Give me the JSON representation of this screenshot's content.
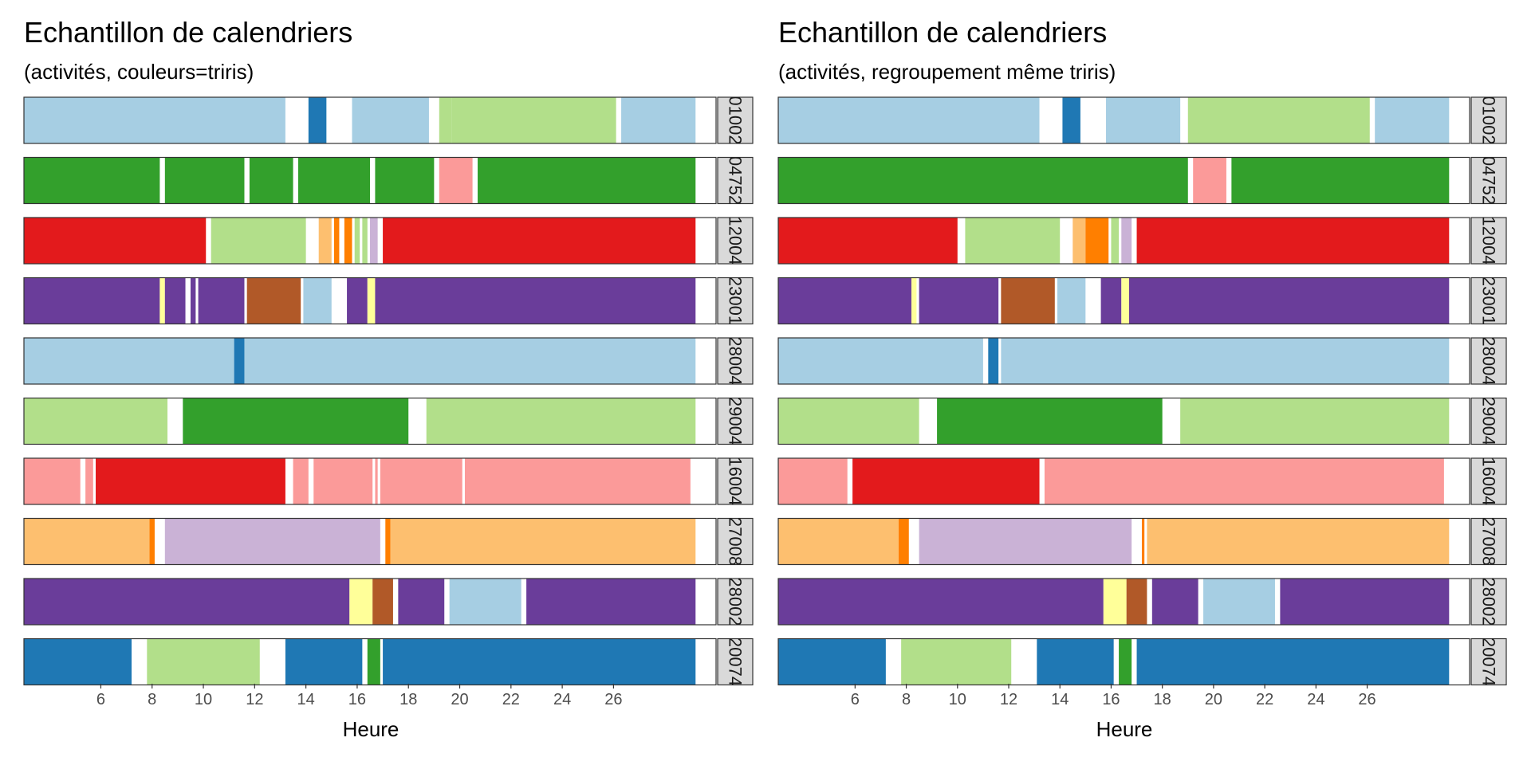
{
  "colors": {
    "a": "#A6CEE3",
    "b": "#1F78B4",
    "c": "#B2DF8A",
    "d": "#33A02C",
    "e": "#FB9A99",
    "f": "#E31A1C",
    "g": "#FDBF6F",
    "h": "#FF7F00",
    "i": "#CAB2D6",
    "j": "#6A3D9A",
    "k": "#FFFF99",
    "l": "#B15928"
  },
  "chart_data": [
    {
      "type": "bar",
      "title": "Echantillon de calendriers",
      "subtitle": "(activités, couleurs=triris)",
      "xlabel": "Heure",
      "xlim": [
        3,
        30
      ],
      "x_ticks": [
        6,
        8,
        10,
        12,
        14,
        16,
        18,
        20,
        22,
        24,
        26
      ],
      "rows": [
        {
          "label": "01002",
          "segments": [
            {
              "start": 3.0,
              "end": 13.2,
              "color": "a"
            },
            {
              "start": 14.1,
              "end": 14.8,
              "color": "b"
            },
            {
              "start": 15.8,
              "end": 18.8,
              "color": "a"
            },
            {
              "start": 19.2,
              "end": 19.7,
              "color": "c"
            },
            {
              "start": 19.7,
              "end": 26.1,
              "color": "c"
            },
            {
              "start": 26.3,
              "end": 29.2,
              "color": "a"
            }
          ]
        },
        {
          "label": "04752",
          "segments": [
            {
              "start": 3.0,
              "end": 8.3,
              "color": "d"
            },
            {
              "start": 8.5,
              "end": 11.6,
              "color": "d"
            },
            {
              "start": 11.8,
              "end": 13.5,
              "color": "d"
            },
            {
              "start": 13.7,
              "end": 16.5,
              "color": "d"
            },
            {
              "start": 16.7,
              "end": 19.0,
              "color": "d"
            },
            {
              "start": 19.2,
              "end": 20.5,
              "color": "e"
            },
            {
              "start": 20.7,
              "end": 29.2,
              "color": "d"
            }
          ]
        },
        {
          "label": "12004",
          "segments": [
            {
              "start": 3.0,
              "end": 10.1,
              "color": "f"
            },
            {
              "start": 10.3,
              "end": 14.0,
              "color": "c"
            },
            {
              "start": 14.5,
              "end": 15.0,
              "color": "g"
            },
            {
              "start": 15.1,
              "end": 15.3,
              "color": "h"
            },
            {
              "start": 15.5,
              "end": 15.8,
              "color": "h"
            },
            {
              "start": 15.9,
              "end": 16.1,
              "color": "c"
            },
            {
              "start": 16.2,
              "end": 16.4,
              "color": "c"
            },
            {
              "start": 16.5,
              "end": 16.8,
              "color": "i"
            },
            {
              "start": 17.0,
              "end": 29.2,
              "color": "f"
            }
          ]
        },
        {
          "label": "23001",
          "segments": [
            {
              "start": 3.0,
              "end": 8.3,
              "color": "j"
            },
            {
              "start": 8.3,
              "end": 8.5,
              "color": "k"
            },
            {
              "start": 8.5,
              "end": 9.3,
              "color": "j"
            },
            {
              "start": 9.5,
              "end": 9.7,
              "color": "j"
            },
            {
              "start": 9.8,
              "end": 11.6,
              "color": "j"
            },
            {
              "start": 11.7,
              "end": 13.8,
              "color": "l"
            },
            {
              "start": 13.9,
              "end": 15.0,
              "color": "a"
            },
            {
              "start": 15.6,
              "end": 16.4,
              "color": "j"
            },
            {
              "start": 16.4,
              "end": 16.7,
              "color": "k"
            },
            {
              "start": 16.7,
              "end": 29.2,
              "color": "j"
            }
          ]
        },
        {
          "label": "28004",
          "segments": [
            {
              "start": 3.0,
              "end": 11.2,
              "color": "a"
            },
            {
              "start": 11.2,
              "end": 11.6,
              "color": "b"
            },
            {
              "start": 11.6,
              "end": 29.2,
              "color": "a"
            }
          ]
        },
        {
          "label": "29004",
          "segments": [
            {
              "start": 3.0,
              "end": 8.6,
              "color": "c"
            },
            {
              "start": 9.2,
              "end": 18.0,
              "color": "d"
            },
            {
              "start": 18.7,
              "end": 29.2,
              "color": "c"
            }
          ]
        },
        {
          "label": "16004",
          "segments": [
            {
              "start": 3.0,
              "end": 5.2,
              "color": "e"
            },
            {
              "start": 5.4,
              "end": 5.7,
              "color": "e"
            },
            {
              "start": 5.8,
              "end": 13.2,
              "color": "f"
            },
            {
              "start": 13.5,
              "end": 14.1,
              "color": "e"
            },
            {
              "start": 14.3,
              "end": 16.6,
              "color": "e"
            },
            {
              "start": 16.7,
              "end": 16.8,
              "color": "e"
            },
            {
              "start": 16.9,
              "end": 20.1,
              "color": "e"
            },
            {
              "start": 20.2,
              "end": 29.0,
              "color": "e"
            }
          ]
        },
        {
          "label": "27008",
          "segments": [
            {
              "start": 3.0,
              "end": 7.9,
              "color": "g"
            },
            {
              "start": 7.9,
              "end": 8.1,
              "color": "h"
            },
            {
              "start": 8.5,
              "end": 16.9,
              "color": "i"
            },
            {
              "start": 17.1,
              "end": 17.3,
              "color": "h"
            },
            {
              "start": 17.3,
              "end": 29.2,
              "color": "g"
            }
          ]
        },
        {
          "label": "28002",
          "segments": [
            {
              "start": 3.0,
              "end": 15.7,
              "color": "j"
            },
            {
              "start": 15.7,
              "end": 16.6,
              "color": "k"
            },
            {
              "start": 16.6,
              "end": 17.4,
              "color": "l"
            },
            {
              "start": 17.6,
              "end": 19.4,
              "color": "j"
            },
            {
              "start": 19.6,
              "end": 22.4,
              "color": "a"
            },
            {
              "start": 22.6,
              "end": 29.2,
              "color": "j"
            }
          ]
        },
        {
          "label": "20074",
          "segments": [
            {
              "start": 3.0,
              "end": 7.2,
              "color": "b"
            },
            {
              "start": 7.8,
              "end": 12.2,
              "color": "c"
            },
            {
              "start": 13.2,
              "end": 16.2,
              "color": "b"
            },
            {
              "start": 16.4,
              "end": 16.9,
              "color": "d"
            },
            {
              "start": 17.0,
              "end": 29.2,
              "color": "b"
            }
          ]
        }
      ]
    },
    {
      "type": "bar",
      "title": "Echantillon de calendriers",
      "subtitle": "(activités, regroupement même triris)",
      "xlabel": "Heure",
      "xlim": [
        3,
        30
      ],
      "x_ticks": [
        6,
        8,
        10,
        12,
        14,
        16,
        18,
        20,
        22,
        24,
        26
      ],
      "rows": [
        {
          "label": "01002",
          "segments": [
            {
              "start": 3.0,
              "end": 13.2,
              "color": "a"
            },
            {
              "start": 14.1,
              "end": 14.8,
              "color": "b"
            },
            {
              "start": 15.8,
              "end": 18.7,
              "color": "a"
            },
            {
              "start": 19.0,
              "end": 26.1,
              "color": "c"
            },
            {
              "start": 26.3,
              "end": 29.2,
              "color": "a"
            }
          ]
        },
        {
          "label": "04752",
          "segments": [
            {
              "start": 3.0,
              "end": 19.0,
              "color": "d"
            },
            {
              "start": 19.2,
              "end": 20.5,
              "color": "e"
            },
            {
              "start": 20.7,
              "end": 29.2,
              "color": "d"
            }
          ]
        },
        {
          "label": "12004",
          "segments": [
            {
              "start": 3.0,
              "end": 10.0,
              "color": "f"
            },
            {
              "start": 10.3,
              "end": 14.0,
              "color": "c"
            },
            {
              "start": 14.5,
              "end": 15.0,
              "color": "g"
            },
            {
              "start": 15.0,
              "end": 15.9,
              "color": "h"
            },
            {
              "start": 16.0,
              "end": 16.3,
              "color": "c"
            },
            {
              "start": 16.4,
              "end": 16.8,
              "color": "i"
            },
            {
              "start": 17.0,
              "end": 29.2,
              "color": "f"
            }
          ]
        },
        {
          "label": "23001",
          "segments": [
            {
              "start": 3.0,
              "end": 8.2,
              "color": "j"
            },
            {
              "start": 8.2,
              "end": 8.4,
              "color": "k"
            },
            {
              "start": 8.5,
              "end": 11.6,
              "color": "j"
            },
            {
              "start": 11.7,
              "end": 13.8,
              "color": "l"
            },
            {
              "start": 13.9,
              "end": 15.0,
              "color": "a"
            },
            {
              "start": 15.6,
              "end": 16.4,
              "color": "j"
            },
            {
              "start": 16.4,
              "end": 16.7,
              "color": "k"
            },
            {
              "start": 16.7,
              "end": 29.2,
              "color": "j"
            }
          ]
        },
        {
          "label": "28004",
          "segments": [
            {
              "start": 3.0,
              "end": 11.0,
              "color": "a"
            },
            {
              "start": 11.2,
              "end": 11.6,
              "color": "b"
            },
            {
              "start": 11.7,
              "end": 29.2,
              "color": "a"
            }
          ]
        },
        {
          "label": "29004",
          "segments": [
            {
              "start": 3.0,
              "end": 8.5,
              "color": "c"
            },
            {
              "start": 9.2,
              "end": 18.0,
              "color": "d"
            },
            {
              "start": 18.7,
              "end": 29.2,
              "color": "c"
            }
          ]
        },
        {
          "label": "16004",
          "segments": [
            {
              "start": 3.0,
              "end": 5.7,
              "color": "e"
            },
            {
              "start": 5.9,
              "end": 13.2,
              "color": "f"
            },
            {
              "start": 13.4,
              "end": 29.0,
              "color": "e"
            }
          ]
        },
        {
          "label": "27008",
          "segments": [
            {
              "start": 3.0,
              "end": 7.7,
              "color": "g"
            },
            {
              "start": 7.7,
              "end": 8.1,
              "color": "h"
            },
            {
              "start": 8.5,
              "end": 16.8,
              "color": "i"
            },
            {
              "start": 17.2,
              "end": 17.3,
              "color": "h"
            },
            {
              "start": 17.4,
              "end": 29.2,
              "color": "g"
            }
          ]
        },
        {
          "label": "28002",
          "segments": [
            {
              "start": 3.0,
              "end": 15.7,
              "color": "j"
            },
            {
              "start": 15.7,
              "end": 16.6,
              "color": "k"
            },
            {
              "start": 16.6,
              "end": 17.4,
              "color": "l"
            },
            {
              "start": 17.6,
              "end": 19.4,
              "color": "j"
            },
            {
              "start": 19.6,
              "end": 22.4,
              "color": "a"
            },
            {
              "start": 22.6,
              "end": 29.2,
              "color": "j"
            }
          ]
        },
        {
          "label": "20074",
          "segments": [
            {
              "start": 3.0,
              "end": 7.2,
              "color": "b"
            },
            {
              "start": 7.8,
              "end": 12.1,
              "color": "c"
            },
            {
              "start": 13.1,
              "end": 16.1,
              "color": "b"
            },
            {
              "start": 16.3,
              "end": 16.8,
              "color": "d"
            },
            {
              "start": 17.0,
              "end": 29.2,
              "color": "b"
            }
          ]
        }
      ]
    }
  ]
}
